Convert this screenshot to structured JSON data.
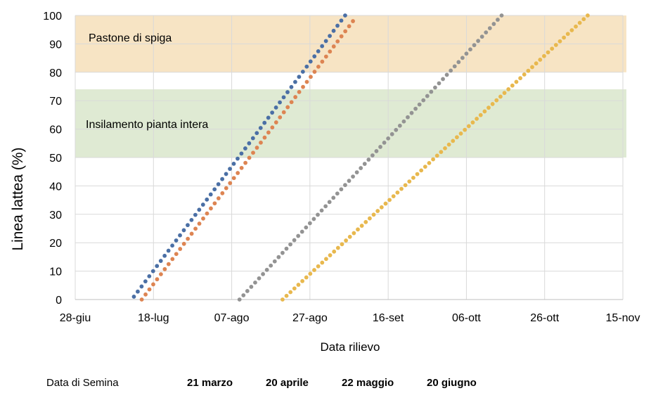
{
  "chart_data": {
    "type": "scatter",
    "ylabel": "Linea lattea (%)",
    "xlabel": "Data rilievo",
    "ylim": [
      0,
      100
    ],
    "yticks": [
      0,
      10,
      20,
      30,
      40,
      50,
      60,
      70,
      80,
      90,
      100
    ],
    "x_ticks": [
      "28-giu",
      "18-lug",
      "07-ago",
      "27-ago",
      "16-set",
      "06-ott",
      "26-ott",
      "15-nov"
    ],
    "x_tick_dates": [
      "2021-06-28",
      "2021-07-18",
      "2021-08-07",
      "2021-08-27",
      "2021-09-16",
      "2021-10-06",
      "2021-10-26",
      "2021-11-15"
    ],
    "grid": true,
    "bands": [
      {
        "label": "Pastone di spiga",
        "y_from": 80,
        "y_to": 100,
        "color": "#f7e4c4"
      },
      {
        "label": "Insilamento pianta intera",
        "y_from": 50,
        "y_to": 74,
        "color": "#dfead3"
      }
    ],
    "series": [
      {
        "name": "21 marzo",
        "color": "#4a6fa5",
        "start_date": "2021-07-13",
        "end_date": "2021-09-05",
        "start_y": 1,
        "end_y": 100,
        "points": 56
      },
      {
        "name": "20 aprile",
        "color": "#dd8452",
        "start_date": "2021-07-15",
        "end_date": "2021-09-07",
        "start_y": 0,
        "end_y": 98,
        "points": 56
      },
      {
        "name": "22 maggio",
        "color": "#939393",
        "start_date": "2021-08-09",
        "end_date": "2021-10-15",
        "start_y": 0,
        "end_y": 100,
        "points": 68
      },
      {
        "name": "20 giugno",
        "color": "#e8b84e",
        "start_date": "2021-08-20",
        "end_date": "2021-11-06",
        "start_y": 0,
        "end_y": 100,
        "points": 78
      }
    ]
  },
  "legend": {
    "title": "Data di Semina",
    "items": [
      "21 marzo",
      "20 aprile",
      "22 maggio",
      "20 giugno"
    ]
  }
}
